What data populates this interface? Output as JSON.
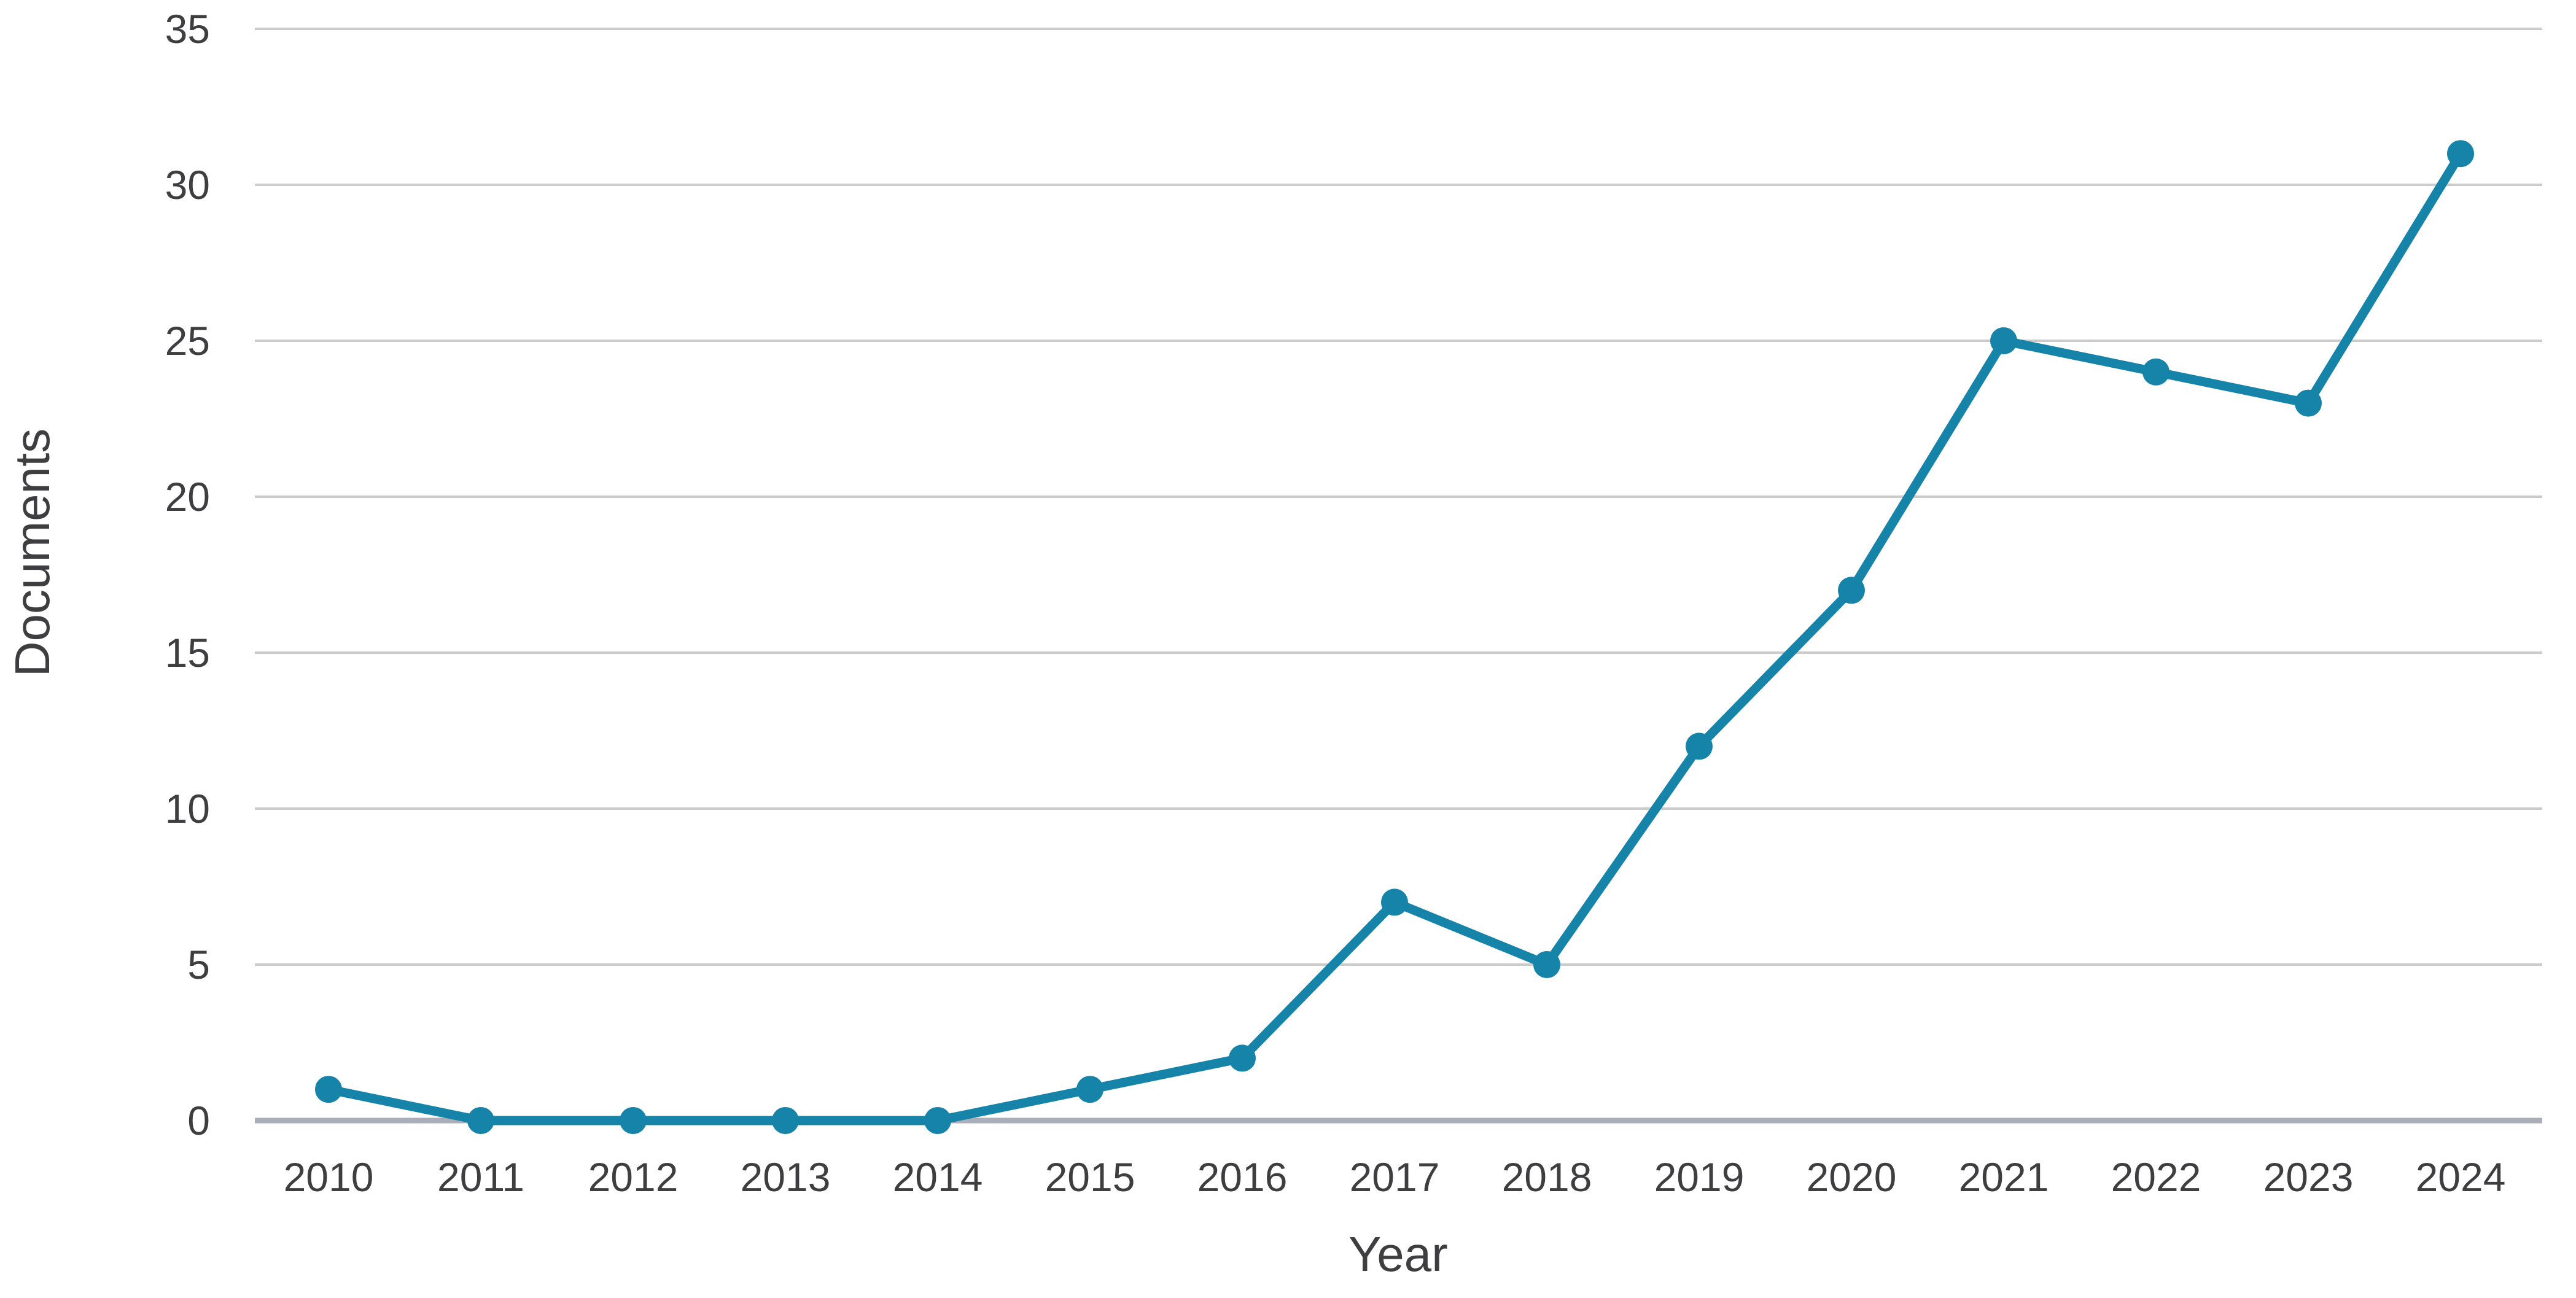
{
  "chart_data": {
    "type": "line",
    "x": [
      2010,
      2011,
      2012,
      2013,
      2014,
      2015,
      2016,
      2017,
      2018,
      2019,
      2020,
      2021,
      2022,
      2023,
      2024
    ],
    "series": [
      {
        "name": "Documents",
        "values": [
          1,
          0,
          0,
          0,
          0,
          1,
          2,
          7,
          5,
          12,
          17,
          25,
          24,
          23,
          31
        ]
      }
    ],
    "title": "",
    "xlabel": "Year",
    "ylabel": "Documents",
    "ylim": [
      0,
      35
    ],
    "yticks": [
      0,
      5,
      10,
      15,
      20,
      25,
      30,
      35
    ],
    "grid": true,
    "legend": false,
    "marker": "circle",
    "colors": {
      "line": "#1683a9",
      "marker": "#1683a9",
      "gridline": "#cbcbcb",
      "axis_line": "#a9aeb8",
      "text": "#3e3e40",
      "background": "#ffffff"
    }
  }
}
